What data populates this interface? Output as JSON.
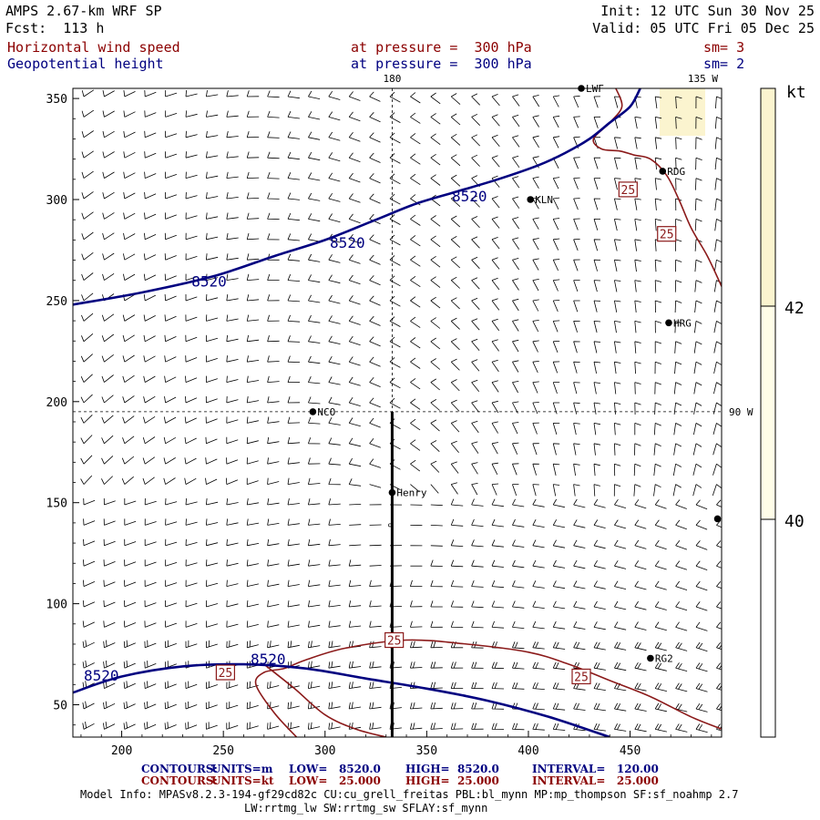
{
  "header": {
    "model": "AMPS 2.67-km WRF SP",
    "forecast": "Fcst:  113 h",
    "init": "Init: 12 UTC Sun 30 Nov 25",
    "valid": "Valid: 05 UTC Fri 05 Dec 25",
    "field1": "Horizontal wind speed",
    "field2": "Geopotential height",
    "level1": "at pressure =  300 hPa",
    "level2": "at pressure =  300 hPa",
    "smooth1": "sm= 3",
    "smooth2": "sm= 2"
  },
  "chart_data": {
    "type": "contour",
    "title": "Horizontal wind speed / Geopotential height at 300 hPa",
    "xlim": [
      176,
      495
    ],
    "ylim": [
      34,
      355
    ],
    "x_ticks": [
      200,
      250,
      300,
      350,
      400,
      450
    ],
    "y_ticks": [
      50,
      100,
      150,
      200,
      250,
      300,
      350
    ],
    "meridian_labels": [
      "180",
      "135 W",
      "90 W"
    ],
    "dashed_meridian_x": 333,
    "dashed_parallel_y": 195,
    "cross_section": {
      "x": 333,
      "y0": 34,
      "y1": 195
    },
    "stations": [
      {
        "name": "NCO",
        "x": 294,
        "y": 195
      },
      {
        "name": "Henry",
        "x": 333,
        "y": 155
      },
      {
        "name": "KLN",
        "x": 401,
        "y": 300
      },
      {
        "name": "RDG",
        "x": 466,
        "y": 314
      },
      {
        "name": "HRG",
        "x": 469,
        "y": 239
      },
      {
        "name": "RG2",
        "x": 460,
        "y": 73
      },
      {
        "name": "LWF",
        "x": 426,
        "y": 355
      },
      {
        "name": "",
        "x": 493,
        "y": 142
      }
    ],
    "height_contours": [
      {
        "value": 8520,
        "label": "8520",
        "points": [
          [
            176,
            248
          ],
          [
            210,
            254
          ],
          [
            245,
            262
          ],
          [
            275,
            272
          ],
          [
            300,
            280
          ],
          [
            325,
            290
          ],
          [
            345,
            298
          ],
          [
            365,
            304
          ],
          [
            385,
            310
          ],
          [
            405,
            317
          ],
          [
            418,
            323
          ],
          [
            430,
            330
          ],
          [
            440,
            338
          ],
          [
            450,
            346
          ],
          [
            455,
            355
          ]
        ]
      },
      {
        "value": 8520,
        "label": "8520",
        "points": [
          [
            176,
            56
          ],
          [
            200,
            64
          ],
          [
            230,
            69
          ],
          [
            260,
            70
          ],
          [
            290,
            68
          ],
          [
            320,
            63
          ],
          [
            350,
            58
          ],
          [
            380,
            52
          ],
          [
            410,
            44
          ],
          [
            440,
            34
          ]
        ]
      }
    ],
    "height_labels": [
      {
        "text": "8520",
        "x": 243,
        "y": 257
      },
      {
        "text": "8520",
        "x": 311,
        "y": 276
      },
      {
        "text": "8520",
        "x": 371,
        "y": 299
      },
      {
        "text": "8520",
        "x": 190,
        "y": 62
      },
      {
        "text": "8520",
        "x": 272,
        "y": 70
      }
    ],
    "speed_contours": [
      {
        "value": 25,
        "points": [
          [
            443,
            355
          ],
          [
            446,
            346
          ],
          [
            440,
            338
          ],
          [
            432,
            330
          ],
          [
            436,
            325
          ],
          [
            445,
            324
          ],
          [
            452,
            322
          ],
          [
            460,
            320
          ],
          [
            468,
            312
          ],
          [
            474,
            300
          ],
          [
            480,
            286
          ],
          [
            488,
            272
          ],
          [
            495,
            257
          ]
        ]
      },
      {
        "value": 25,
        "points": [
          [
            286,
            34
          ],
          [
            275,
            46
          ],
          [
            266,
            60
          ],
          [
            270,
            66
          ],
          [
            280,
            68
          ],
          [
            290,
            72
          ],
          [
            310,
            78
          ],
          [
            340,
            82
          ],
          [
            370,
            80
          ],
          [
            400,
            76
          ],
          [
            420,
            70
          ],
          [
            440,
            62
          ],
          [
            460,
            54
          ],
          [
            480,
            44
          ],
          [
            495,
            38
          ]
        ]
      },
      {
        "value": 25,
        "points": [
          [
            270,
            70
          ],
          [
            285,
            58
          ],
          [
            300,
            45
          ],
          [
            315,
            38
          ],
          [
            330,
            34
          ]
        ]
      }
    ],
    "speed_labels": [
      {
        "text": "25",
        "x": 449,
        "y": 305
      },
      {
        "text": "25",
        "x": 468,
        "y": 283
      },
      {
        "text": "25",
        "x": 334,
        "y": 82
      },
      {
        "text": "25",
        "x": 426,
        "y": 64
      },
      {
        "text": "25",
        "x": 251,
        "y": 66
      }
    ],
    "colorbar": {
      "unit": "kt",
      "levels": [
        40,
        42
      ],
      "colors": [
        "#ffffff",
        "#fffde8",
        "#fbf4cf"
      ]
    }
  },
  "footer": {
    "contours1": {
      "label": "CONTOURS:",
      "units": "UNITS=m",
      "low": "LOW=   8520.0",
      "high": "HIGH=  8520.0",
      "interval": "INTERVAL=   120.00"
    },
    "contours2": {
      "label": "CONTOURS:",
      "units": "UNITS=kt",
      "low": "LOW=   25.000",
      "high": "HIGH=  25.000",
      "interval": "INTERVAL=   25.000"
    },
    "model_info1": "Model Info: MPASv8.2.3-194-gf29cd82c CU:cu_grell_freitas PBL:bl_mynn MP:mp_thompson SF:sf_noahmp 2.7",
    "model_info2": "LW:rrtmg_lw SW:rrtmg_sw SFLAY:sf_mynn"
  }
}
